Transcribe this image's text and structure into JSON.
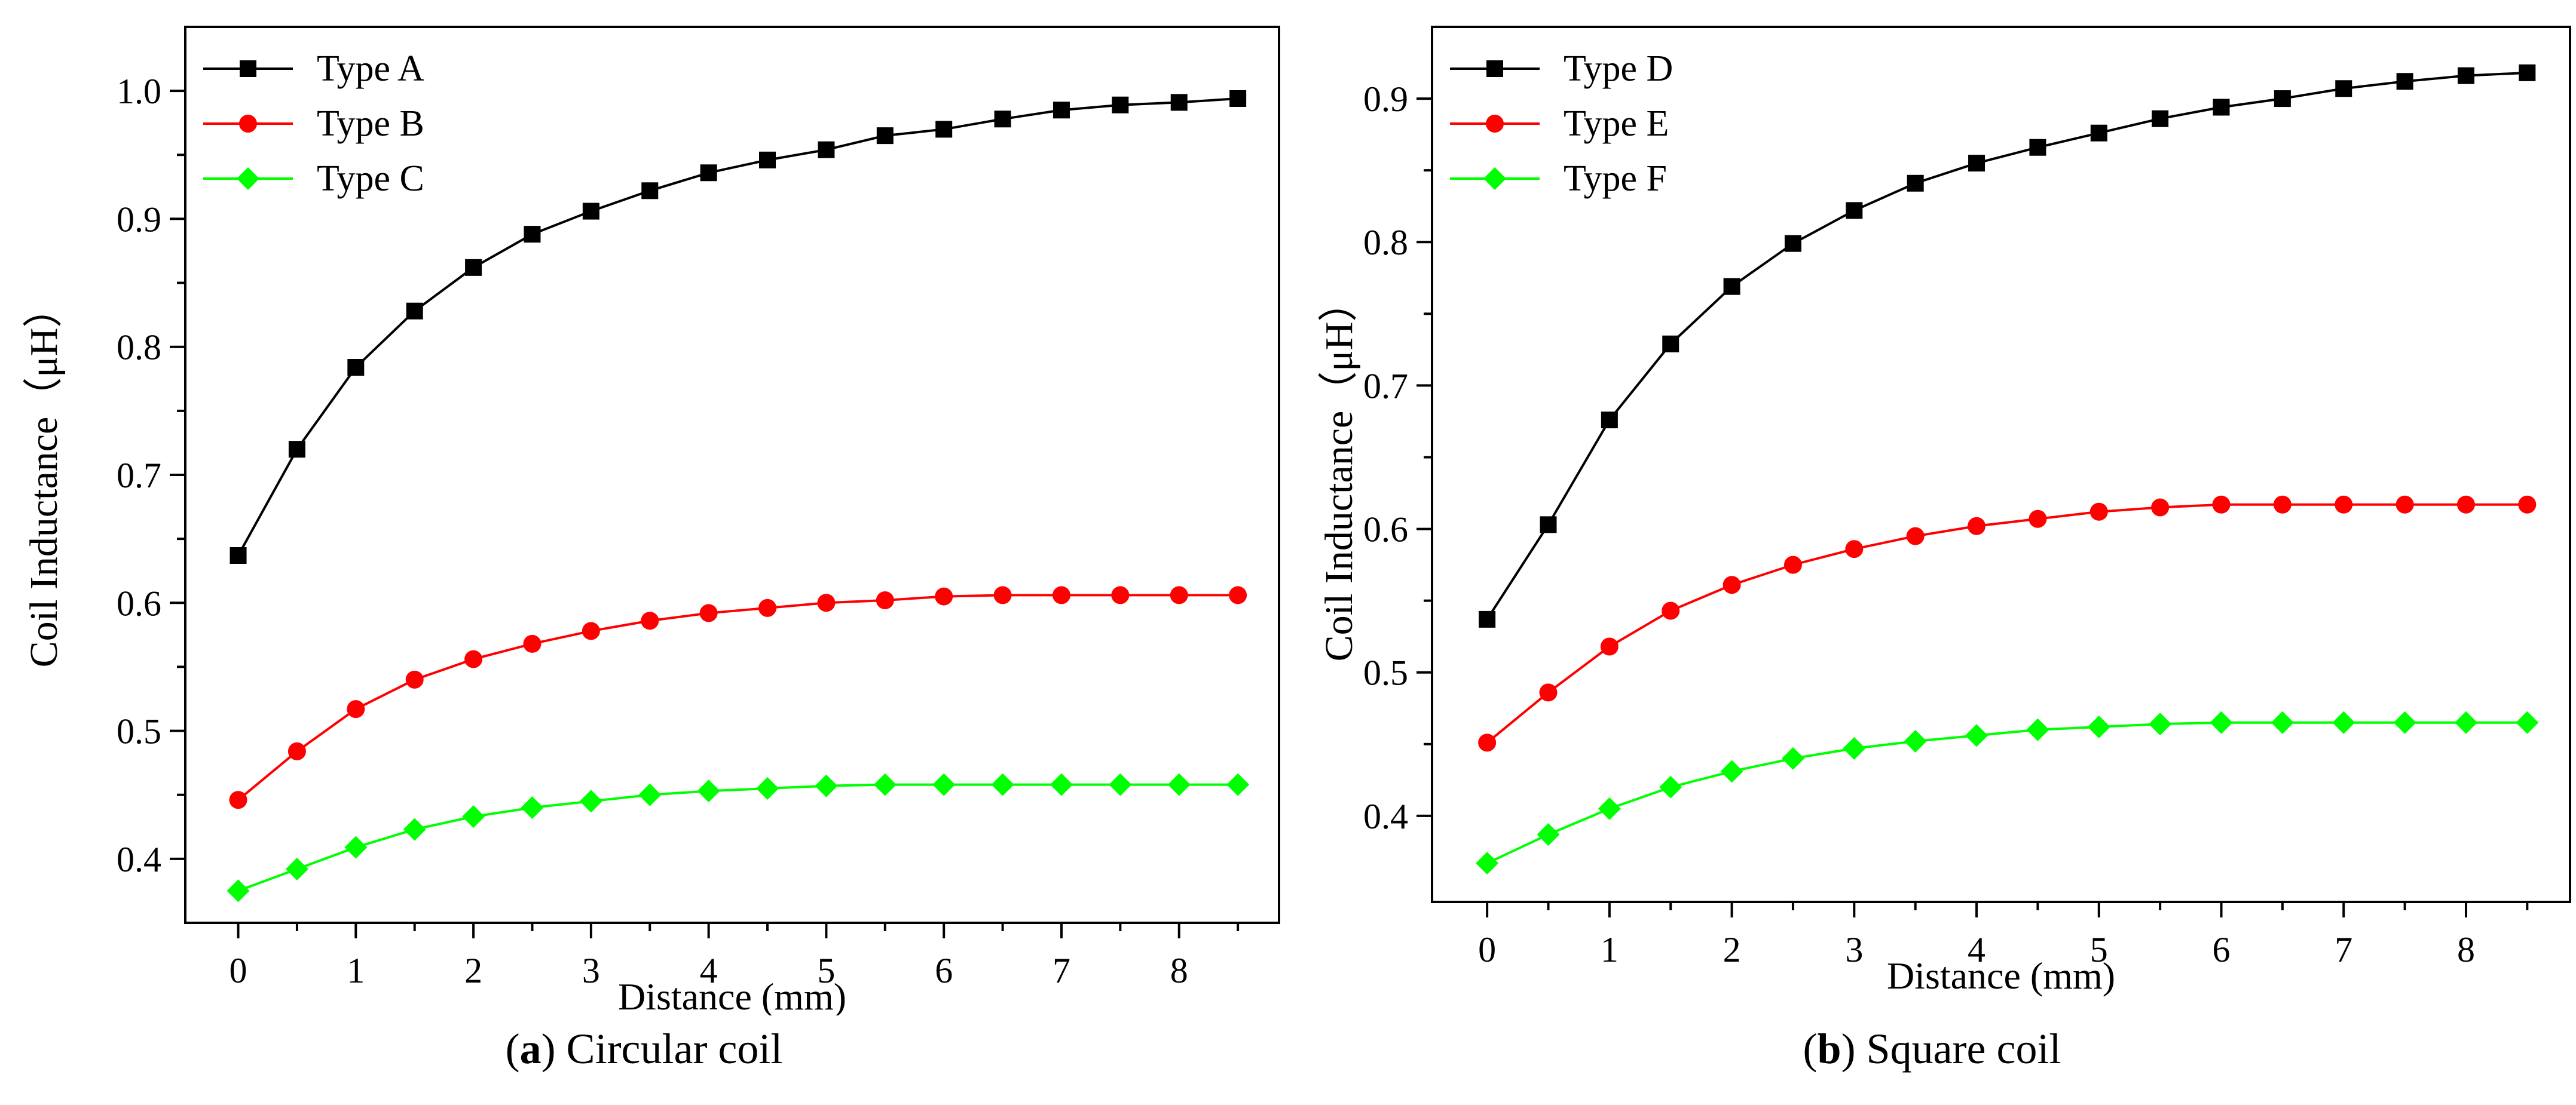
{
  "charts": [
    {
      "id": "a",
      "caption": {
        "letter": "a",
        "text": "Circular coil"
      },
      "chart_data": {
        "type": "line",
        "title": "",
        "xlabel": "Distance (mm)",
        "ylabel": "Coil Inductance（μH）",
        "xlim": [
          -0.45,
          8.85
        ],
        "ylim": [
          0.35,
          1.05
        ],
        "xticks": [
          0,
          1,
          2,
          3,
          4,
          5,
          6,
          7,
          8
        ],
        "yticks": [
          0.4,
          0.5,
          0.6,
          0.7,
          0.8,
          0.9,
          1.0
        ],
        "ytick_labels": [
          "0.4",
          "0.5",
          "0.6",
          "0.7",
          "0.8",
          "0.9",
          "1.0"
        ],
        "grid": false,
        "legend_position": "top-left",
        "x": [
          0,
          0.5,
          1,
          1.5,
          2,
          2.5,
          3,
          3.5,
          4,
          4.5,
          5,
          5.5,
          6,
          6.5,
          7,
          7.5,
          8,
          8.5
        ],
        "series": [
          {
            "name": "Type A",
            "color": "#000000",
            "marker": "square",
            "values": [
              0.637,
              0.72,
              0.784,
              0.828,
              0.862,
              0.888,
              0.906,
              0.922,
              0.936,
              0.946,
              0.954,
              0.965,
              0.97,
              0.978,
              0.985,
              0.989,
              0.991,
              0.994
            ]
          },
          {
            "name": "Type B",
            "color": "#ff0000",
            "marker": "circle",
            "values": [
              0.446,
              0.484,
              0.517,
              0.54,
              0.556,
              0.568,
              0.578,
              0.586,
              0.592,
              0.596,
              0.6,
              0.602,
              0.605,
              0.606,
              0.606,
              0.606,
              0.606,
              0.606
            ]
          },
          {
            "name": "Type C",
            "color": "#00ff00",
            "marker": "diamond",
            "values": [
              0.375,
              0.392,
              0.409,
              0.423,
              0.433,
              0.44,
              0.445,
              0.45,
              0.453,
              0.455,
              0.457,
              0.458,
              0.458,
              0.458,
              0.458,
              0.458,
              0.458,
              0.458
            ]
          }
        ]
      }
    },
    {
      "id": "b",
      "caption": {
        "letter": "b",
        "text": "Square coil"
      },
      "chart_data": {
        "type": "line",
        "title": "",
        "xlabel": "Distance (mm)",
        "ylabel": "Coil Inductance（μH）",
        "xlim": [
          -0.45,
          8.85
        ],
        "ylim": [
          0.34,
          0.95
        ],
        "xticks": [
          0,
          1,
          2,
          3,
          4,
          5,
          6,
          7,
          8
        ],
        "yticks": [
          0.4,
          0.5,
          0.6,
          0.7,
          0.8,
          0.9
        ],
        "ytick_labels": [
          "0.4",
          "0.5",
          "0.6",
          "0.7",
          "0.8",
          "0.9"
        ],
        "grid": false,
        "legend_position": "top-left",
        "x": [
          0,
          0.5,
          1,
          1.5,
          2,
          2.5,
          3,
          3.5,
          4,
          4.5,
          5,
          5.5,
          6,
          6.5,
          7,
          7.5,
          8,
          8.5
        ],
        "series": [
          {
            "name": "Type D",
            "color": "#000000",
            "marker": "square",
            "values": [
              0.537,
              0.603,
              0.676,
              0.729,
              0.769,
              0.799,
              0.822,
              0.841,
              0.855,
              0.866,
              0.876,
              0.886,
              0.894,
              0.9,
              0.907,
              0.912,
              0.916,
              0.918
            ]
          },
          {
            "name": "Type E",
            "color": "#ff0000",
            "marker": "circle",
            "values": [
              0.451,
              0.486,
              0.518,
              0.543,
              0.561,
              0.575,
              0.586,
              0.595,
              0.602,
              0.607,
              0.612,
              0.615,
              0.617,
              0.617,
              0.617,
              0.617,
              0.617,
              0.617
            ]
          },
          {
            "name": "Type F",
            "color": "#00ff00",
            "marker": "diamond",
            "values": [
              0.367,
              0.387,
              0.405,
              0.42,
              0.431,
              0.44,
              0.447,
              0.452,
              0.456,
              0.46,
              0.462,
              0.464,
              0.465,
              0.465,
              0.465,
              0.465,
              0.465,
              0.465
            ]
          }
        ]
      }
    }
  ]
}
